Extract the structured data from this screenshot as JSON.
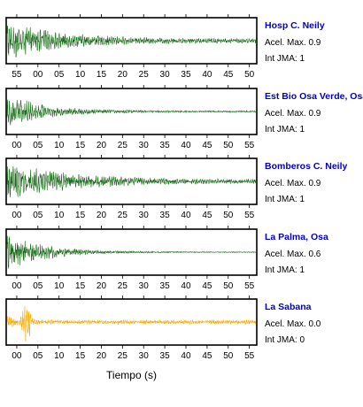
{
  "xlabel": "Tiempo (s)",
  "accel_label": "Acel. Max.",
  "int_label": "Int JMA:",
  "colors": {
    "green": "#1a6b1a",
    "orange": "#f5a800",
    "frame": "#000000"
  },
  "chart_data": [
    {
      "type": "line",
      "station": "Hosp C. Neily",
      "acel_max": "0.9",
      "int_jma": "1",
      "tick_labels": [
        "55",
        "00",
        "05",
        "10",
        "15",
        "20",
        "25",
        "30",
        "35",
        "40",
        "45",
        "50"
      ],
      "tick_labels_position": "top-and-bottom",
      "waveform": {
        "amp_initial": 1.0,
        "amp_final": 0.12,
        "decay": 0.09
      }
    },
    {
      "type": "line",
      "station": "Est Bio Osa Verde, Osa",
      "acel_max": "0.9",
      "int_jma": "1",
      "tick_labels": [
        "00",
        "05",
        "10",
        "15",
        "20",
        "25",
        "30",
        "35",
        "40",
        "45",
        "50",
        "55"
      ],
      "tick_labels_position": "bottom",
      "waveform": {
        "amp_initial": 0.85,
        "amp_final": 0.04,
        "decay": 0.11
      }
    },
    {
      "type": "line",
      "station": "Bomberos C. Neily",
      "acel_max": "0.9",
      "int_jma": "1",
      "tick_labels": [
        "00",
        "05",
        "10",
        "15",
        "20",
        "25",
        "30",
        "35",
        "40",
        "45",
        "50",
        "55"
      ],
      "tick_labels_position": "bottom",
      "waveform": {
        "amp_initial": 0.95,
        "amp_final": 0.1,
        "decay": 0.07
      }
    },
    {
      "type": "line",
      "station": "La Palma, Osa",
      "acel_max": "0.6",
      "int_jma": "1",
      "tick_labels": [
        "00",
        "05",
        "10",
        "15",
        "20",
        "25",
        "30",
        "35",
        "40",
        "45",
        "50",
        "55"
      ],
      "tick_labels_position": "bottom",
      "waveform": {
        "amp_initial": 1.0,
        "amp_final": 0.02,
        "decay": 0.12
      }
    },
    {
      "type": "line",
      "station": "La Sabana",
      "acel_max": "0.0",
      "int_jma": "0",
      "tick_labels": [
        "00",
        "05",
        "10",
        "15",
        "20",
        "25",
        "30",
        "35",
        "40",
        "45",
        "50",
        "55"
      ],
      "tick_labels_position": "bottom",
      "waveform": {
        "amp_initial": 0.35,
        "amp_final": 0.1,
        "decay": 0.3,
        "spike_time_s": 4.5,
        "spike_amp": 1.0
      }
    }
  ]
}
